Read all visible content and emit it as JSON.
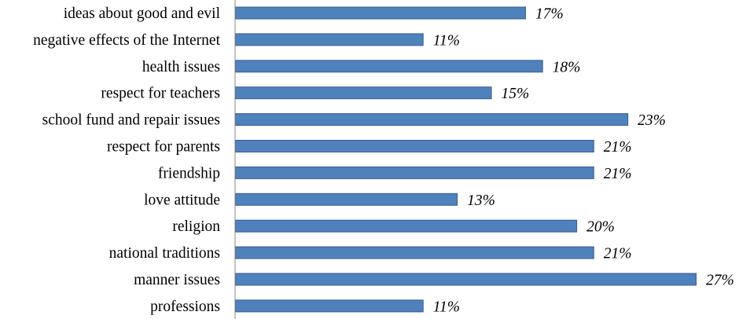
{
  "chart_data": {
    "type": "bar",
    "orientation": "horizontal",
    "title": "",
    "xlabel": "",
    "ylabel": "",
    "xlim": [
      0,
      27
    ],
    "grid": false,
    "legend": "none",
    "categories": [
      "ideas about good and evil",
      "negative effects of the Internet",
      "health issues",
      "respect for teachers",
      "school fund and repair issues",
      "respect for parents",
      "friendship",
      "love attitude",
      "religion",
      "national traditions",
      "manner issues",
      "professions"
    ],
    "values": [
      17,
      11,
      18,
      15,
      23,
      21,
      21,
      13,
      20,
      21,
      27,
      11
    ],
    "value_labels": [
      "17%",
      "11%",
      "18%",
      "15%",
      "23%",
      "21%",
      "21%",
      "13%",
      "20%",
      "21%",
      "27%",
      "11%"
    ],
    "colors": {
      "bar": "#4f81bd",
      "bar_border": "#385d8a",
      "axis": "#868686"
    }
  }
}
